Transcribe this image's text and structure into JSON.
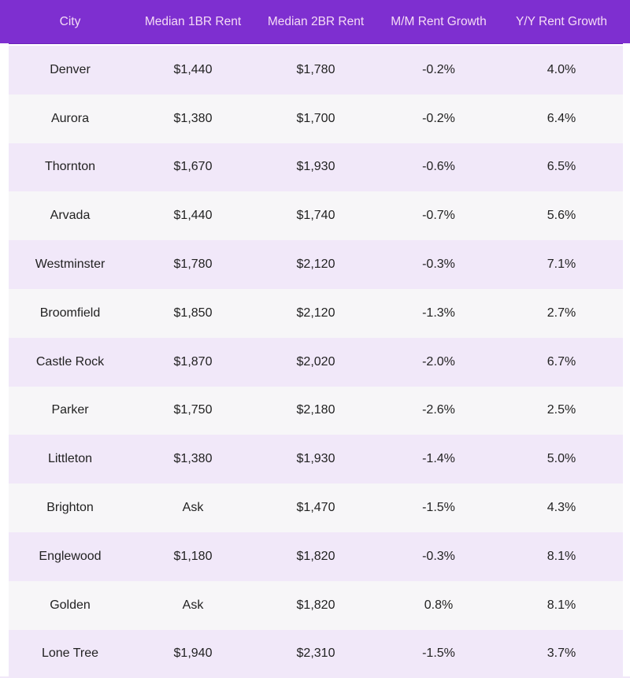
{
  "table": {
    "headers": [
      "City",
      "Median 1BR Rent",
      "Median 2BR Rent",
      "M/M Rent Growth",
      "Y/Y Rent Growth"
    ],
    "rows": [
      [
        "Denver",
        "$1,440",
        "$1,780",
        "-0.2%",
        "4.0%"
      ],
      [
        "Aurora",
        "$1,380",
        "$1,700",
        "-0.2%",
        "6.4%"
      ],
      [
        "Thornton",
        "$1,670",
        "$1,930",
        "-0.6%",
        "6.5%"
      ],
      [
        "Arvada",
        "$1,440",
        "$1,740",
        "-0.7%",
        "5.6%"
      ],
      [
        "Westminster",
        "$1,780",
        "$2,120",
        "-0.3%",
        "7.1%"
      ],
      [
        "Broomfield",
        "$1,850",
        "$2,120",
        "-1.3%",
        "2.7%"
      ],
      [
        "Castle Rock",
        "$1,870",
        "$2,020",
        "-2.0%",
        "6.7%"
      ],
      [
        "Parker",
        "$1,750",
        "$2,180",
        "-2.6%",
        "2.5%"
      ],
      [
        "Littleton",
        "$1,380",
        "$1,930",
        "-1.4%",
        "5.0%"
      ],
      [
        "Brighton",
        "Ask",
        "$1,470",
        "-1.5%",
        "4.3%"
      ],
      [
        "Englewood",
        "$1,180",
        "$1,820",
        "-0.3%",
        "8.1%"
      ],
      [
        "Golden",
        "Ask",
        "$1,820",
        "0.8%",
        "8.1%"
      ],
      [
        "Lone Tree",
        "$1,940",
        "$2,310",
        "-1.5%",
        "3.7%"
      ]
    ]
  },
  "colors": {
    "header_bg": "#7e2fd0",
    "header_text": "#f5dcf6",
    "row_odd": "#f1e8f9",
    "row_even": "#f7f6f8"
  }
}
